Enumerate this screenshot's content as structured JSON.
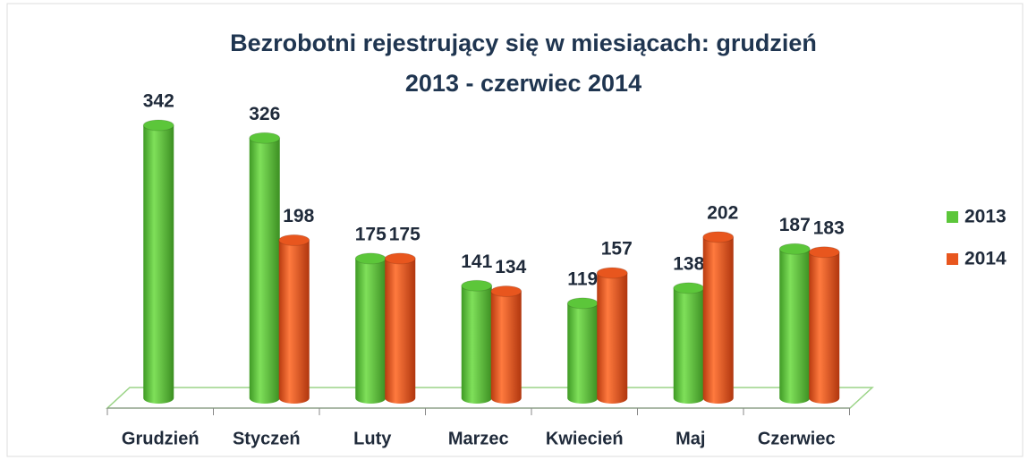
{
  "chart_data": {
    "type": "bar",
    "title": "Bezrobotni rejestrujący się w miesiącach: grudzień 2013 - czerwiec 2014",
    "categories": [
      "Grudzień",
      "Styczeń",
      "Luty",
      "Marzec",
      "Kwiecień",
      "Maj",
      "Czerwiec"
    ],
    "series": [
      {
        "name": "2013",
        "color": "#5cc63a",
        "values": [
          342,
          326,
          175,
          141,
          119,
          138,
          187
        ]
      },
      {
        "name": "2014",
        "color": "#e8561e",
        "values": [
          null,
          198,
          175,
          134,
          157,
          202,
          183
        ]
      }
    ],
    "legend": "right"
  }
}
